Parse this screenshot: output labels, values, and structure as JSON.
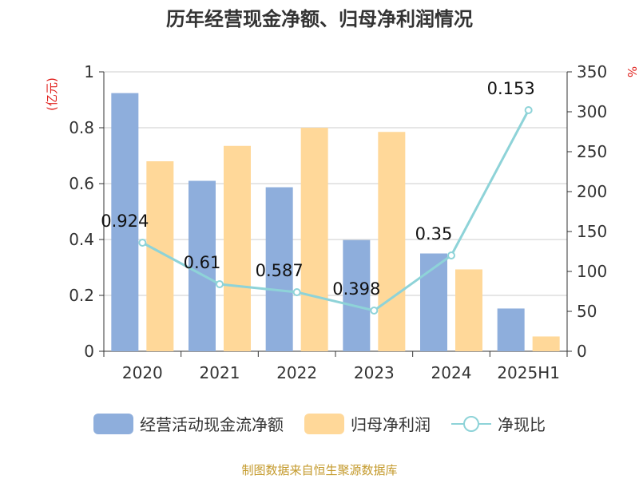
{
  "chart_data": {
    "type": "bar",
    "title": "历年经营现金净额、归母净利润情况",
    "categories": [
      "2020",
      "2021",
      "2022",
      "2023",
      "2024",
      "2025H1"
    ],
    "series": [
      {
        "name": "经营活动现金流净额",
        "type": "bar",
        "axis": "left",
        "color": "#8eaedc",
        "values": [
          0.924,
          0.61,
          0.587,
          0.398,
          0.35,
          0.153
        ]
      },
      {
        "name": "归母净利润",
        "type": "bar",
        "axis": "left",
        "color": "#ffd899",
        "values": [
          0.68,
          0.735,
          0.8,
          0.785,
          0.293,
          0.053
        ]
      },
      {
        "name": "净现比",
        "type": "line",
        "axis": "right",
        "color": "#8ed3d8",
        "values": [
          136,
          84,
          74,
          51,
          120,
          302
        ]
      }
    ],
    "data_labels": [
      "0.924",
      "0.61",
      "0.587",
      "0.398",
      "0.35",
      "0.153"
    ],
    "y_left": {
      "label": "(亿元)",
      "ylim": [
        0,
        1
      ],
      "ticks": [
        "0",
        "0.2",
        "0.4",
        "0.6",
        "0.8",
        "1"
      ]
    },
    "y_right": {
      "label": "%",
      "ylim": [
        0,
        350
      ],
      "ticks": [
        "0",
        "50",
        "100",
        "150",
        "200",
        "250",
        "300",
        "350"
      ]
    },
    "grid": true,
    "legend_position": "bottom"
  },
  "legend": {
    "bar1": "经营活动现金流净额",
    "bar2": "归母净利润",
    "line": "净现比"
  },
  "source": "制图数据来自恒生聚源数据库"
}
